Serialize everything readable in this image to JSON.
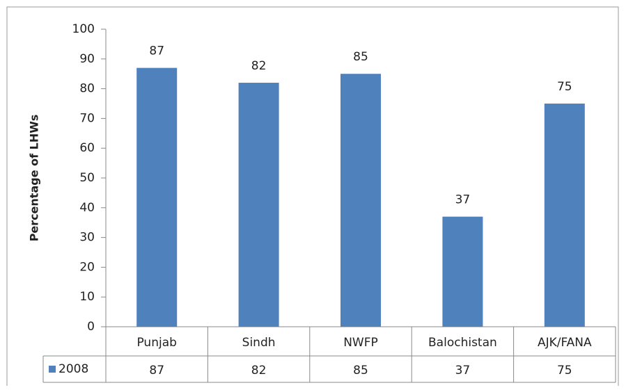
{
  "chart_data": {
    "type": "bar",
    "y_label": "Percentage of LHWs",
    "categories": [
      "Punjab",
      "Sindh",
      "NWFP",
      "Balochistan",
      "AJK/FANA"
    ],
    "series": [
      {
        "name": "2008",
        "color": "#4f81bd",
        "values": [
          87,
          82,
          85,
          37,
          75
        ]
      }
    ],
    "ylim": [
      0,
      100
    ],
    "yticks": [
      0,
      10,
      20,
      30,
      40,
      50,
      60,
      70,
      80,
      90,
      100
    ],
    "grid": false,
    "data_labels": true,
    "data_table": true
  }
}
